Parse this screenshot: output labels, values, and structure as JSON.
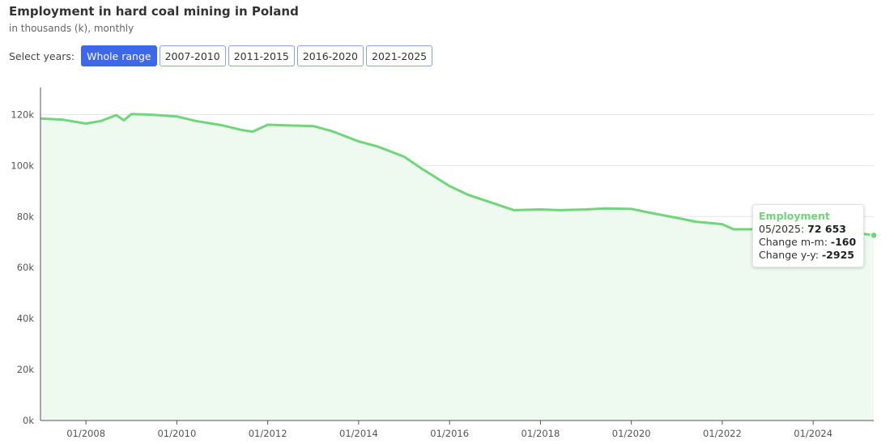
{
  "header": {
    "title": "Employment in hard coal mining in Poland",
    "subtitle": "in thousands (k), monthly"
  },
  "controls": {
    "label": "Select years:",
    "buttons": [
      {
        "label": "Whole range",
        "active": true
      },
      {
        "label": "2007-2010",
        "active": false
      },
      {
        "label": "2011-2015",
        "active": false
      },
      {
        "label": "2016-2020",
        "active": false
      },
      {
        "label": "2021-2025",
        "active": false
      }
    ]
  },
  "tooltip": {
    "series": "Employment",
    "date": "05/2025",
    "value": "72 653",
    "change_mm_label": "Change m-m",
    "change_mm": "-160",
    "change_yy_label": "Change y-y",
    "change_yy": "-2925"
  },
  "colors": {
    "line": "#6fd67a",
    "area": "#eef9ef",
    "button_active": "#3d68e8",
    "button_border": "#8aa2e6"
  },
  "chart_data": {
    "type": "area",
    "title": "Employment in hard coal mining in Poland",
    "subtitle": "in thousands (k), monthly",
    "grid": true,
    "ylim": [
      0,
      130000
    ],
    "y_ticks": [
      0,
      20000,
      40000,
      60000,
      80000,
      100000,
      120000
    ],
    "y_tick_labels": [
      "0k",
      "20k",
      "40k",
      "60k",
      "80k",
      "100k",
      "120k"
    ],
    "x_ticks": [
      "2008-01",
      "2010-01",
      "2012-01",
      "2014-01",
      "2016-01",
      "2018-01",
      "2020-01",
      "2022-01",
      "2024-01"
    ],
    "x_tick_labels": [
      "01/2008",
      "01/2010",
      "01/2012",
      "01/2014",
      "01/2016",
      "01/2018",
      "01/2020",
      "01/2022",
      "01/2024"
    ],
    "x_range": [
      "2007-01",
      "2025-05"
    ],
    "series": [
      {
        "name": "Employment",
        "points": [
          [
            "2007-01",
            118500
          ],
          [
            "2007-07",
            118000
          ],
          [
            "2008-01",
            116500
          ],
          [
            "2008-05",
            117500
          ],
          [
            "2008-09",
            119800
          ],
          [
            "2008-11",
            117800
          ],
          [
            "2009-01",
            120200
          ],
          [
            "2009-06",
            120000
          ],
          [
            "2010-01",
            119300
          ],
          [
            "2010-06",
            117500
          ],
          [
            "2011-01",
            115800
          ],
          [
            "2011-06",
            114000
          ],
          [
            "2011-09",
            113300
          ],
          [
            "2012-01",
            116000
          ],
          [
            "2012-06",
            115800
          ],
          [
            "2013-01",
            115500
          ],
          [
            "2013-06",
            113500
          ],
          [
            "2014-01",
            109500
          ],
          [
            "2014-06",
            107500
          ],
          [
            "2015-01",
            103500
          ],
          [
            "2015-06",
            98500
          ],
          [
            "2016-01",
            92000
          ],
          [
            "2016-06",
            88500
          ],
          [
            "2017-01",
            85000
          ],
          [
            "2017-06",
            82500
          ],
          [
            "2018-01",
            82800
          ],
          [
            "2018-06",
            82500
          ],
          [
            "2019-01",
            82800
          ],
          [
            "2019-06",
            83200
          ],
          [
            "2020-01",
            83000
          ],
          [
            "2020-06",
            81500
          ],
          [
            "2021-01",
            79500
          ],
          [
            "2021-06",
            78000
          ],
          [
            "2022-01",
            77000
          ],
          [
            "2022-04",
            75000
          ],
          [
            "2023-01",
            75000
          ],
          [
            "2024-01",
            75200
          ],
          [
            "2025-01",
            73500
          ],
          [
            "2025-05",
            72653
          ]
        ]
      }
    ]
  }
}
